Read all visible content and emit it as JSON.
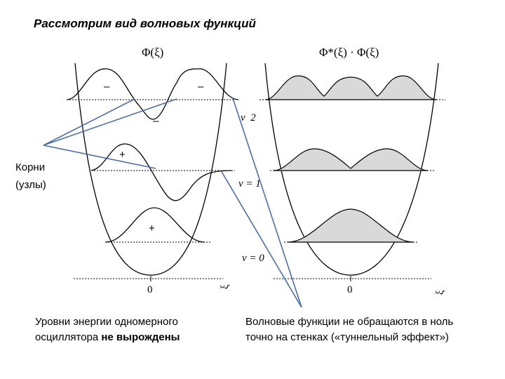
{
  "title": "Рассмотрим вид волновых функций",
  "left_panel": {
    "header": "Φ(ξ)",
    "levels": [
      {
        "label": "v  2",
        "signs": [
          "–",
          "–",
          "–"
        ]
      },
      {
        "label": "v = 1",
        "signs": [
          "+"
        ]
      },
      {
        "label": "v = 0",
        "signs": [
          "+"
        ]
      }
    ],
    "axis_zero": "0",
    "axis_var": "ξ"
  },
  "right_panel": {
    "header": "Φ*(ξ) · Φ(ξ)",
    "axis_zero": "0",
    "axis_var": "ξ"
  },
  "roots_label": {
    "line1": "Корни",
    "line2": "(узлы)"
  },
  "note_left": {
    "text": "Уровни энергии одномерного осциллятора ",
    "bold": "не вырождены"
  },
  "note_right": {
    "text": "Волновые функции не обращаются в ноль точно на стенках («туннельный эффект»)"
  },
  "colors": {
    "fill": "#d9d9d9",
    "pointer": "#4a6fa5",
    "line": "#000000"
  }
}
